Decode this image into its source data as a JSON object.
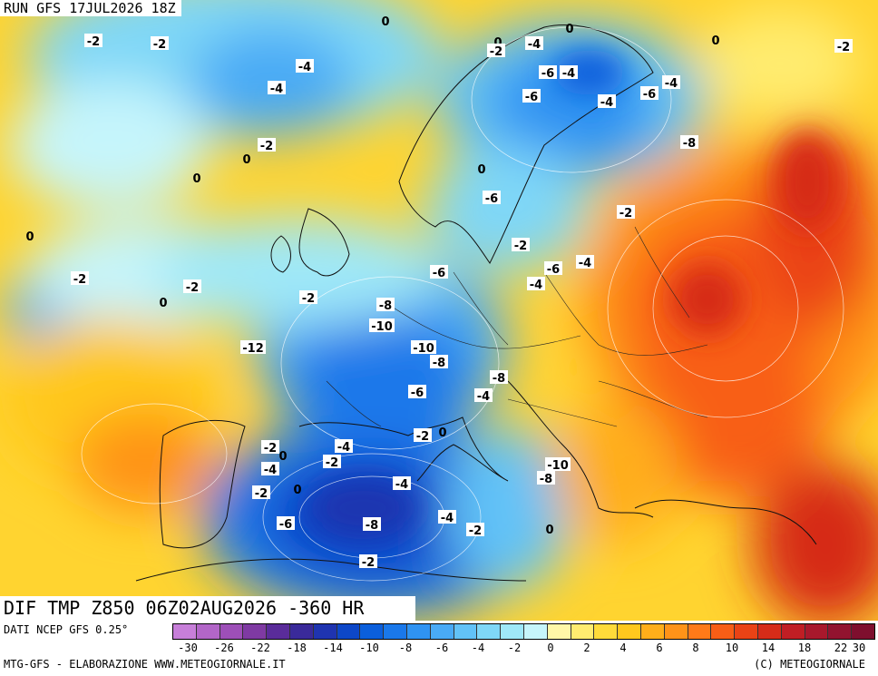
{
  "header": {
    "run_label": "RUN GFS 17JUL2026 18Z"
  },
  "title": {
    "text": "DIF TMP Z850 06Z02AUG2026 -360 HR"
  },
  "footer": {
    "source": "DATI NCEP GFS 0.25°",
    "credit": "MTG-GFS - ELABORAZIONE WWW.METEOGIORNALE.IT",
    "copyright": "(C) METEOGIORNALE"
  },
  "colorbar": {
    "colors": [
      "#c77fd9",
      "#b266c8",
      "#9d4fb8",
      "#7f3aa3",
      "#5a2c9a",
      "#3a2a9a",
      "#1f34b0",
      "#0d47c8",
      "#0b5fdc",
      "#1a78ea",
      "#2f93f2",
      "#49aaf5",
      "#62c2f7",
      "#7fd7f7",
      "#9fe8f8",
      "#c6f5fb",
      "#fff7a8",
      "#ffec70",
      "#ffdb3a",
      "#ffc81e",
      "#ffae1a",
      "#ff9318",
      "#ff7a18",
      "#f85e16",
      "#ea4315",
      "#d62c18",
      "#c01e24",
      "#a8182c",
      "#92132f",
      "#7e0f2e"
    ],
    "tick_labels": [
      "-30",
      "-26",
      "-22",
      "-18",
      "-14",
      "-10",
      "-8",
      "-6",
      "-4",
      "-2",
      "0",
      "2",
      "4",
      "6",
      "8",
      "10",
      "14",
      "18",
      "22",
      "30"
    ]
  },
  "map_labels": [
    "0",
    "-2",
    "-2",
    "-4",
    "-4",
    "-2",
    "0",
    "0",
    "0",
    "0",
    "0",
    "-2",
    "-2",
    "0",
    "-2",
    "-2",
    "0",
    "-2",
    "-4",
    "-6",
    "-4",
    "-6",
    "-4",
    "-6",
    "-4",
    "-6",
    "-8",
    "0",
    "-2",
    "-2",
    "-6",
    "-4",
    "-4",
    "-6",
    "-8",
    "-10",
    "-12",
    "-10",
    "-8",
    "-6",
    "-8",
    "-4",
    "-2",
    "0",
    "-4",
    "-2",
    "-2",
    "0",
    "-4",
    "-2",
    "0",
    "-4",
    "-8",
    "-10",
    "-6",
    "-8",
    "-4",
    "-2",
    "0",
    "-2"
  ]
}
